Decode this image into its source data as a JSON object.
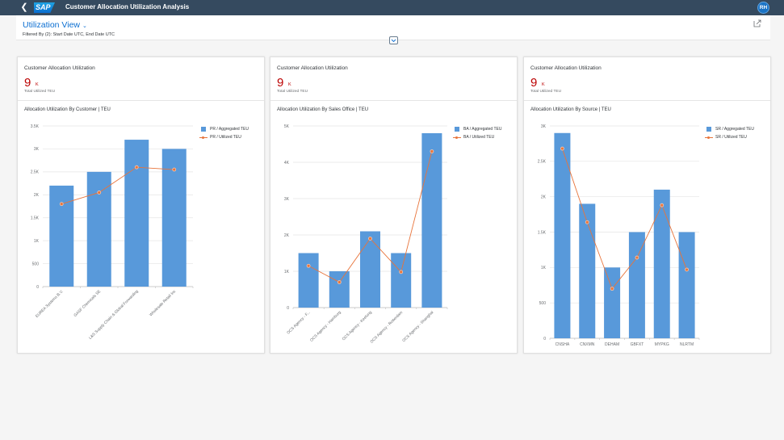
{
  "shell": {
    "back_icon": "chevron-left-icon",
    "logo": "SAP",
    "title": "Customer Allocation Utilization Analysis",
    "avatar_initials": "RH"
  },
  "header": {
    "view_title": "Utilization View",
    "view_chevron": "⌄",
    "filter_text": "Filtered By (2): Start Date UTC, End Date UTC",
    "share_icon": "share-icon",
    "collapse_icon": "chevron-down-icon"
  },
  "cards": [
    {
      "kpi_title": "Customer Allocation Utilization",
      "kpi_value": "9",
      "kpi_unit": "K",
      "kpi_sub": "Total Utilized TEU",
      "chart_title": "Allocation Utilization By Customer | TEU",
      "legend": [
        "PR / Aggregated TEU",
        "PR / Utilized TEU"
      ]
    },
    {
      "kpi_title": "Customer Allocation Utilization",
      "kpi_value": "9",
      "kpi_unit": "K",
      "kpi_sub": "Total Utilized TEU",
      "chart_title": "Allocation Utilization By Sales Office | TEU",
      "legend": [
        "BA / Aggregated TEU",
        "BA / Utilized TEU"
      ]
    },
    {
      "kpi_title": "Customer Allocation Utilization",
      "kpi_value": "9",
      "kpi_unit": "K",
      "kpi_sub": "Total Utilized TEU",
      "chart_title": "Allocation Utilization By Source | TEU",
      "legend": [
        "SR / Aggregated TEU",
        "SR / Utilized TEU"
      ]
    }
  ],
  "colors": {
    "shell": "#354a5f",
    "bar": "#5899da",
    "line": "#e8743b",
    "kpi": "#bb0000",
    "link": "#0a6ed1"
  },
  "chart_data": [
    {
      "type": "bar",
      "title": "Allocation Utilization By Customer | TEU",
      "categories": [
        "EUREA Systems B.V.",
        "GASF Chemicals SE",
        "L&S Supply Chain & Global Forwarding",
        "Wholesale Retail Inc"
      ],
      "series": [
        {
          "name": "PR / Aggregated TEU",
          "type": "bar",
          "values": [
            2200,
            2500,
            3200,
            3000
          ]
        },
        {
          "name": "PR / Utilized TEU",
          "type": "line",
          "values": [
            1800,
            2050,
            2600,
            2550
          ]
        }
      ],
      "yticks": [
        "0",
        "500",
        "1K",
        "1.5K",
        "2K",
        "2.5K",
        "3K",
        "3.5K"
      ],
      "ylim": [
        0,
        3500
      ],
      "xlabel": "",
      "ylabel": "",
      "grid": true,
      "legend_position": "right"
    },
    {
      "type": "bar",
      "title": "Allocation Utilization By Sales Office | TEU",
      "categories": [
        "OCS Agency - F...",
        "OCS Agency - Hamburg",
        "OCS Agency - Keelung",
        "OCS Agency - Rotterdam",
        "OCS Agency - Shanghai"
      ],
      "series": [
        {
          "name": "BA / Aggregated TEU",
          "type": "bar",
          "values": [
            1500,
            1000,
            2100,
            1500,
            4800
          ]
        },
        {
          "name": "BA / Utilized TEU",
          "type": "line",
          "values": [
            1150,
            700,
            1900,
            980,
            4300
          ]
        }
      ],
      "yticks": [
        "0",
        "1K",
        "2K",
        "3K",
        "4K",
        "5K"
      ],
      "ylim": [
        0,
        5000
      ],
      "xlabel": "",
      "ylabel": "",
      "grid": true,
      "legend_position": "right"
    },
    {
      "type": "bar",
      "title": "Allocation Utilization By Source | TEU",
      "categories": [
        "CNSHA",
        "CNXMN",
        "DEHAM",
        "GBFXT",
        "MYPKG",
        "NLRTM"
      ],
      "series": [
        {
          "name": "SR / Aggregated TEU",
          "type": "bar",
          "values": [
            2900,
            1900,
            1000,
            1500,
            2100,
            1500
          ]
        },
        {
          "name": "SR / Utilized TEU",
          "type": "line",
          "values": [
            2680,
            1640,
            700,
            1140,
            1880,
            970
          ]
        }
      ],
      "yticks": [
        "0",
        "500",
        "1K",
        "1.5K",
        "2K",
        "2.5K",
        "3K"
      ],
      "ylim": [
        0,
        3000
      ],
      "xlabel": "",
      "ylabel": "",
      "grid": true,
      "legend_position": "right"
    }
  ]
}
